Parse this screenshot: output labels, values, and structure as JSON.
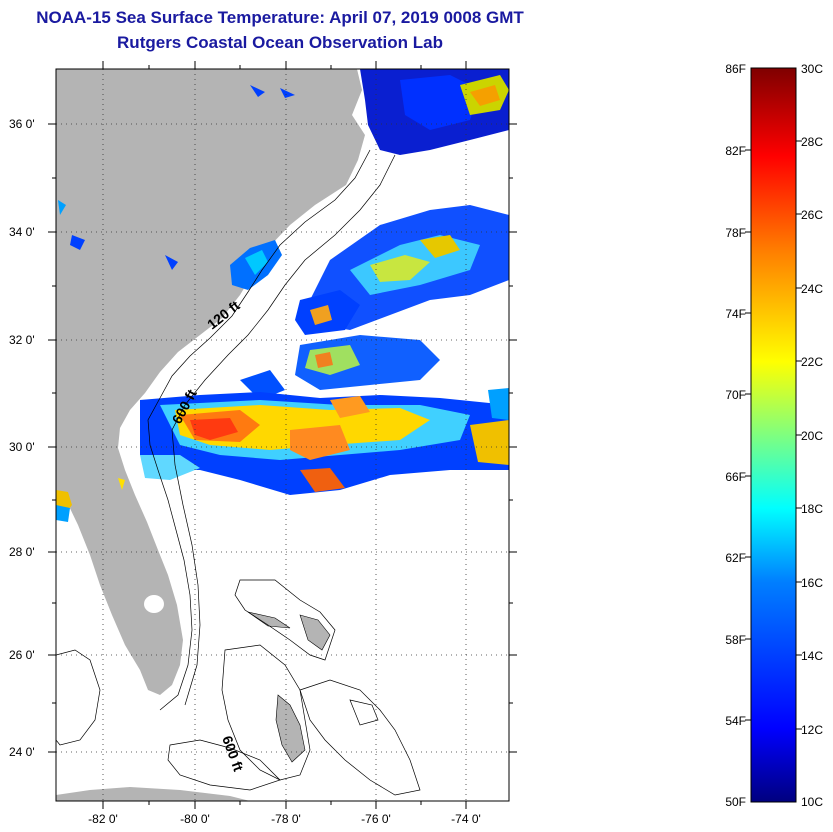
{
  "title": {
    "line1": "NOAA-15 Sea Surface Temperature:  April 07, 2019 0008 GMT",
    "line2": "Rutgers Coastal Ocean Observation Lab"
  },
  "map": {
    "lat_labels": [
      "36 0'",
      "34 0'",
      "32 0'",
      "30 0'",
      "28 0'",
      "26 0'",
      "24 0'"
    ],
    "lon_labels": [
      "-82 0'",
      "-80 0'",
      "-78 0'",
      "-76 0'",
      "-74 0'"
    ],
    "depth_labels": [
      "120 ft",
      "600 ft",
      "600 ft"
    ],
    "colors": {
      "land": "#b4b4b4",
      "water_no_data": "#ffffff"
    }
  },
  "colorbar": {
    "f_labels": [
      "86F",
      "82F",
      "78F",
      "74F",
      "70F",
      "66F",
      "62F",
      "58F",
      "54F",
      "50F"
    ],
    "c_labels": [
      "30C",
      "28C",
      "26C",
      "24C",
      "22C",
      "20C",
      "18C",
      "16C",
      "14C",
      "12C",
      "10C"
    ],
    "gradient": [
      "#00007f",
      "#0000ff",
      "#007fff",
      "#00ffff",
      "#7fff7f",
      "#ffff00",
      "#ff7f00",
      "#ff0000",
      "#7f0000"
    ]
  }
}
